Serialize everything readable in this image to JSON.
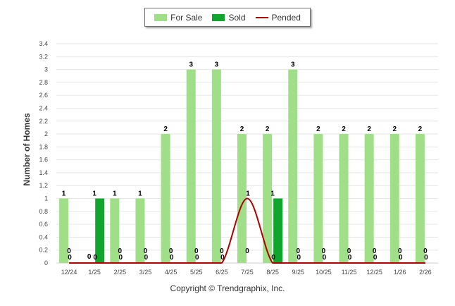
{
  "legend": {
    "items": [
      {
        "label": "For Sale",
        "color": "#9fdf87"
      },
      {
        "label": "Sold",
        "color": "#10a52c"
      },
      {
        "label": "Pended",
        "color": "#b00000"
      }
    ]
  },
  "footer": "Copyright © Trendgraphix, Inc.",
  "chart_data": {
    "type": "bar",
    "title": "",
    "xlabel": "",
    "ylabel": "Number of Homes",
    "ylim": [
      0,
      3.4
    ],
    "y_ticks": [
      "0",
      "0.2",
      "0.4",
      "0.6",
      "0.8",
      "1",
      "1.2",
      "1.4",
      "1.6",
      "1.8",
      "2",
      "2.2",
      "2.4",
      "2.6",
      "2.8",
      "3",
      "3.2",
      "3.4"
    ],
    "categories": [
      "12/24",
      "1/25",
      "2/25",
      "3/25",
      "4/25",
      "5/25",
      "6/25",
      "7/25",
      "8/25",
      "9/25",
      "10/25",
      "11/25",
      "12/25",
      "1/26",
      "2/26"
    ],
    "grid": true,
    "legend_position": "top-center",
    "series": [
      {
        "name": "For Sale",
        "type": "bar",
        "color": "#9fdf87",
        "values": [
          1,
          0,
          1,
          1,
          2,
          3,
          3,
          2,
          2,
          3,
          2,
          2,
          2,
          2,
          2
        ]
      },
      {
        "name": "Sold",
        "type": "bar",
        "color": "#10a52c",
        "values": [
          0,
          1,
          0,
          0,
          0,
          0,
          0,
          0,
          1,
          0,
          0,
          0,
          0,
          0,
          0
        ]
      },
      {
        "name": "Pended",
        "type": "line",
        "color": "#b00000",
        "values": [
          0,
          0,
          0,
          0,
          0,
          0,
          0,
          1,
          0,
          0,
          0,
          0,
          0,
          0,
          0
        ]
      }
    ]
  }
}
